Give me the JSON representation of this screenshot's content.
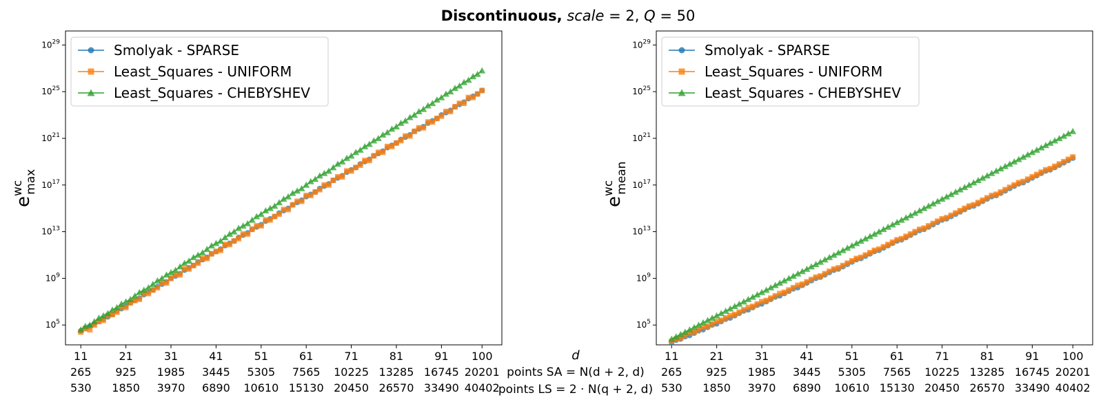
{
  "figure": {
    "title_bold": "Discontinuous,",
    "title_rest_italic": "scale",
    "title_rest": " = 2, ",
    "title_q_italic": "Q",
    "title_q": " = 50"
  },
  "xlabels": {
    "d_label": "d",
    "sa_label": "points SA = N(d + 2, d)",
    "ls_label": "points LS = 2 · N(q + 2, d)"
  },
  "colors": {
    "smolyak": "#1f77b4",
    "uniform": "#ff7f0e",
    "chebyshev": "#2ca02c"
  },
  "chart_data": [
    {
      "type": "line",
      "ylabel": "e_max^wc",
      "yscale": "log",
      "ylim_log10": [
        3.3,
        30.2
      ],
      "y_ticks": [
        "10^5",
        "10^9",
        "10^13",
        "10^17",
        "10^21",
        "10^25",
        "10^29"
      ],
      "x_ticks": [
        {
          "d": 11,
          "sa": "265",
          "ls": "530"
        },
        {
          "d": 21,
          "sa": "925",
          "ls": "1850"
        },
        {
          "d": 31,
          "sa": "1985",
          "ls": "3970"
        },
        {
          "d": 41,
          "sa": "3445",
          "ls": "6890"
        },
        {
          "d": 51,
          "sa": "5305",
          "ls": "10610"
        },
        {
          "d": 61,
          "sa": "7565",
          "ls": "15130"
        },
        {
          "d": 71,
          "sa": "10225",
          "ls": "20450"
        },
        {
          "d": 81,
          "sa": "13285",
          "ls": "26570"
        },
        {
          "d": 91,
          "sa": "16745",
          "ls": "33490"
        },
        {
          "d": 100,
          "sa": "20201",
          "ls": "40402"
        }
      ],
      "legend_position": "top-left",
      "series": [
        {
          "name": "Smolyak - SPARSE",
          "marker": "circle",
          "color": "#1f77b4",
          "x_start": 11,
          "x_end": 100,
          "log10_y": [
            4.5,
            4.7,
            4.9,
            5.1,
            5.3,
            5.5,
            5.7,
            5.9,
            6.2,
            6.4,
            6.6,
            6.9,
            7.1,
            7.3,
            7.6,
            7.8,
            8.0,
            8.3,
            8.5,
            8.7,
            9.0,
            9.2,
            9.4,
            9.7,
            9.9,
            10.1,
            10.4,
            10.6,
            10.8,
            11.1,
            11.3,
            11.5,
            11.8,
            12.0,
            12.2,
            12.5,
            12.7,
            12.9,
            13.2,
            13.4,
            13.6,
            13.9,
            14.1,
            14.3,
            14.6,
            14.8,
            15.0,
            15.3,
            15.5,
            15.7,
            16.0,
            16.2,
            16.4,
            16.7,
            16.9,
            17.1,
            17.4,
            17.6,
            17.8,
            18.1,
            18.3,
            18.5,
            18.8,
            19.0,
            19.2,
            19.5,
            19.7,
            19.9,
            20.2,
            20.4,
            20.6,
            20.9,
            21.1,
            21.3,
            21.6,
            21.8,
            22.0,
            22.3,
            22.5,
            22.7,
            23.0,
            23.2,
            23.4,
            23.7,
            23.9,
            24.1,
            24.4,
            24.6,
            24.8,
            25.1
          ]
        },
        {
          "name": "Least_Squares - UNIFORM",
          "marker": "square",
          "color": "#ff7f0e",
          "x_start": 11,
          "x_end": 100,
          "log10_y": [
            4.4,
            4.7,
            4.6,
            5.0,
            5.3,
            5.4,
            5.8,
            5.9,
            6.1,
            6.5,
            6.5,
            6.9,
            7.1,
            7.2,
            7.7,
            7.7,
            8.0,
            8.2,
            8.6,
            8.6,
            9.0,
            9.3,
            9.3,
            9.8,
            9.8,
            10.1,
            10.3,
            10.7,
            10.7,
            11.1,
            11.3,
            11.4,
            11.9,
            11.9,
            12.2,
            12.4,
            12.8,
            12.8,
            13.2,
            13.5,
            13.5,
            14.0,
            14.0,
            14.3,
            14.5,
            14.9,
            14.9,
            15.3,
            15.6,
            15.6,
            16.1,
            16.1,
            16.4,
            16.6,
            17.0,
            17.0,
            17.4,
            17.7,
            17.7,
            18.2,
            18.2,
            18.5,
            18.7,
            19.1,
            19.1,
            19.5,
            19.8,
            19.8,
            20.3,
            20.3,
            20.6,
            20.8,
            21.2,
            21.2,
            21.6,
            21.9,
            21.9,
            22.4,
            22.4,
            22.7,
            22.9,
            23.3,
            23.3,
            23.7,
            24.0,
            24.0,
            24.5,
            24.5,
            24.8,
            25.1
          ]
        },
        {
          "name": "Least_Squares - CHEBYSHEV",
          "marker": "triangle",
          "color": "#2ca02c",
          "x_start": 11,
          "x_end": 100,
          "log10_y": [
            4.6,
            4.9,
            5.0,
            5.3,
            5.6,
            5.8,
            6.0,
            6.3,
            6.5,
            6.8,
            7.0,
            7.2,
            7.5,
            7.8,
            8.0,
            8.2,
            8.5,
            8.8,
            9.0,
            9.3,
            9.5,
            9.7,
            10.0,
            10.3,
            10.5,
            10.8,
            11.0,
            11.2,
            11.5,
            11.8,
            12.0,
            12.2,
            12.5,
            12.8,
            13.0,
            13.3,
            13.5,
            13.7,
            14.0,
            14.3,
            14.5,
            14.8,
            15.0,
            15.2,
            15.5,
            15.8,
            16.0,
            16.3,
            16.5,
            16.7,
            17.0,
            17.3,
            17.5,
            17.8,
            18.0,
            18.2,
            18.5,
            18.8,
            19.0,
            19.3,
            19.5,
            19.8,
            20.0,
            20.3,
            20.5,
            20.8,
            21.0,
            21.3,
            21.5,
            21.8,
            22.0,
            22.3,
            22.5,
            22.8,
            23.0,
            23.3,
            23.5,
            23.8,
            24.0,
            24.3,
            24.5,
            24.8,
            25.0,
            25.3,
            25.5,
            25.8,
            26.0,
            26.3,
            26.5,
            26.8
          ]
        }
      ]
    },
    {
      "type": "line",
      "ylabel": "e_mean^wc",
      "yscale": "log",
      "ylim_log10": [
        3.3,
        30.2
      ],
      "y_ticks": [
        "10^5",
        "10^9",
        "10^13",
        "10^17",
        "10^21",
        "10^25",
        "10^29"
      ],
      "x_ticks": [
        {
          "d": 11,
          "sa": "265",
          "ls": "530"
        },
        {
          "d": 21,
          "sa": "925",
          "ls": "1850"
        },
        {
          "d": 31,
          "sa": "1985",
          "ls": "3970"
        },
        {
          "d": 41,
          "sa": "3445",
          "ls": "6890"
        },
        {
          "d": 51,
          "sa": "5305",
          "ls": "10610"
        },
        {
          "d": 61,
          "sa": "7565",
          "ls": "15130"
        },
        {
          "d": 71,
          "sa": "10225",
          "ls": "20450"
        },
        {
          "d": 81,
          "sa": "13285",
          "ls": "26570"
        },
        {
          "d": 91,
          "sa": "16745",
          "ls": "33490"
        },
        {
          "d": 100,
          "sa": "20201",
          "ls": "40402"
        }
      ],
      "legend_position": "top-left",
      "series": [
        {
          "name": "Smolyak - SPARSE",
          "marker": "circle",
          "color": "#1f77b4",
          "x_start": 11,
          "x_end": 100,
          "log10_y": [
            3.5,
            3.7,
            3.8,
            4.0,
            4.1,
            4.3,
            4.5,
            4.6,
            4.8,
            5.0,
            5.1,
            5.3,
            5.5,
            5.6,
            5.8,
            6.0,
            6.2,
            6.3,
            6.5,
            6.7,
            6.8,
            7.0,
            7.2,
            7.4,
            7.5,
            7.7,
            7.9,
            8.1,
            8.2,
            8.4,
            8.6,
            8.8,
            9.0,
            9.1,
            9.3,
            9.5,
            9.7,
            9.8,
            10.0,
            10.2,
            10.4,
            10.6,
            10.7,
            10.9,
            11.1,
            11.3,
            11.4,
            11.6,
            11.8,
            12.0,
            12.2,
            12.3,
            12.5,
            12.7,
            12.9,
            13.1,
            13.2,
            13.4,
            13.6,
            13.8,
            14.0,
            14.1,
            14.3,
            14.5,
            14.7,
            14.9,
            15.1,
            15.2,
            15.4,
            15.6,
            15.8,
            16.0,
            16.1,
            16.3,
            16.5,
            16.7,
            16.9,
            17.1,
            17.2,
            17.4,
            17.6,
            17.8,
            18.0,
            18.2,
            18.3,
            18.5,
            18.7,
            18.9,
            19.1,
            19.3
          ]
        },
        {
          "name": "Least_Squares - UNIFORM",
          "marker": "square",
          "color": "#ff7f0e",
          "x_start": 11,
          "x_end": 100,
          "log10_y": [
            3.6,
            3.8,
            3.9,
            4.1,
            4.3,
            4.4,
            4.6,
            4.8,
            4.9,
            5.1,
            5.3,
            5.4,
            5.6,
            5.8,
            5.9,
            6.1,
            6.3,
            6.5,
            6.6,
            6.8,
            7.0,
            7.1,
            7.3,
            7.5,
            7.7,
            7.8,
            8.0,
            8.2,
            8.4,
            8.5,
            8.7,
            8.9,
            9.1,
            9.2,
            9.4,
            9.6,
            9.8,
            9.9,
            10.1,
            10.3,
            10.5,
            10.7,
            10.8,
            11.0,
            11.2,
            11.4,
            11.5,
            11.7,
            11.9,
            12.1,
            12.3,
            12.4,
            12.6,
            12.8,
            13.0,
            13.2,
            13.3,
            13.5,
            13.7,
            13.9,
            14.1,
            14.2,
            14.4,
            14.6,
            14.8,
            15.0,
            15.2,
            15.3,
            15.5,
            15.7,
            15.9,
            16.1,
            16.2,
            16.4,
            16.6,
            16.8,
            17.0,
            17.2,
            17.3,
            17.5,
            17.7,
            17.9,
            18.1,
            18.3,
            18.4,
            18.6,
            18.8,
            19.0,
            19.2,
            19.4
          ]
        },
        {
          "name": "Least_Squares - CHEBYSHEV",
          "marker": "triangle",
          "color": "#2ca02c",
          "x_start": 11,
          "x_end": 100,
          "log10_y": [
            3.8,
            4.0,
            4.2,
            4.4,
            4.6,
            4.8,
            5.0,
            5.2,
            5.4,
            5.6,
            5.8,
            6.0,
            6.2,
            6.4,
            6.6,
            6.8,
            7.0,
            7.2,
            7.4,
            7.6,
            7.8,
            8.0,
            8.2,
            8.4,
            8.6,
            8.8,
            9.0,
            9.2,
            9.4,
            9.6,
            9.8,
            10.0,
            10.2,
            10.4,
            10.6,
            10.8,
            11.0,
            11.2,
            11.4,
            11.6,
            11.8,
            12.0,
            12.2,
            12.4,
            12.6,
            12.8,
            13.0,
            13.2,
            13.4,
            13.6,
            13.8,
            14.0,
            14.2,
            14.4,
            14.6,
            14.8,
            15.0,
            15.2,
            15.4,
            15.6,
            15.8,
            16.0,
            16.2,
            16.4,
            16.6,
            16.8,
            17.0,
            17.2,
            17.4,
            17.6,
            17.8,
            18.0,
            18.2,
            18.4,
            18.6,
            18.8,
            19.0,
            19.2,
            19.4,
            19.6,
            19.8,
            20.0,
            20.2,
            20.4,
            20.6,
            20.8,
            21.0,
            21.2,
            21.4,
            21.6
          ]
        }
      ]
    }
  ]
}
